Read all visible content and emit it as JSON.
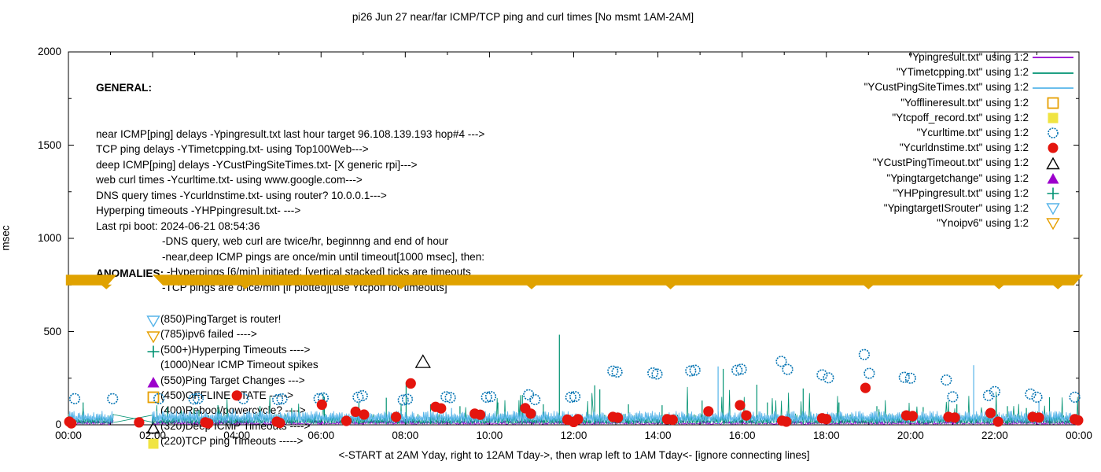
{
  "title": "pi26 Jun 27  near/far ICMP/TCP ping and curl times [No msmt 1AM-2AM]",
  "general": {
    "heading": "GENERAL:",
    "lines": [
      {
        "indent": 0,
        "text": "near ICMP[ping] delays -Ypingresult.txt last hour target 96.108.139.193 hop#4 --->"
      },
      {
        "indent": 0,
        "text": "TCP ping delays -YTimetcpping.txt- using Top100Web--->"
      },
      {
        "indent": 0,
        "text": "deep ICMP[ping] delays -YCustPingSiteTimes.txt- [X generic rpi]--->"
      },
      {
        "indent": 0,
        "text": "web curl times -Ycurltime.txt- using www.google.com--->"
      },
      {
        "indent": 0,
        "text": "DNS query times -Ycurldnstime.txt- using router? 10.0.0.1--->"
      },
      {
        "indent": 0,
        "text": "Hyperping timeouts -YHPpingresult.txt- --->"
      },
      {
        "indent": 0,
        "text": "Last rpi boot: 2024-06-21 08:54:36"
      },
      {
        "indent": 1,
        "text": "-DNS query, web curl are twice/hr, beginnng and end of hour"
      },
      {
        "indent": 1,
        "text": "-near,deep ICMP pings are once/min until timeout[1000 msec], then:"
      },
      {
        "indent": 2,
        "text": "-Hyperpings [6/min] initiated; [vertical stacked] ticks are timeouts"
      },
      {
        "indent": 1,
        "text": "-TCP pings are once/min [if plotted][use Ytcpoff for timeouts]"
      }
    ]
  },
  "anomalies": {
    "heading": "ANOMALIES:",
    "items": [
      {
        "marker": "triangle-down-open",
        "color": "#56b4e9",
        "text": "(850)PingTarget is router!"
      },
      {
        "marker": "triangle-down-open",
        "color": "#e69f00",
        "text": "(785)ipv6 failed ---->"
      },
      {
        "marker": "plus",
        "color": "#009272",
        "text": "(500+)Hyperping Timeouts ---->"
      },
      {
        "marker": "none",
        "color": "#000000",
        "text": "(1000)Near ICMP Timeout spikes"
      },
      {
        "marker": "triangle-up-filled",
        "color": "#9c00cc",
        "text": "(550)Ping Target Changes --->"
      },
      {
        "marker": "square-open",
        "color": "#e69f00",
        "text": "(450)OFFLINE STATE ----->"
      },
      {
        "marker": "none",
        "color": "#000000",
        "text": "(400)Reboot/powercycle? ---->"
      },
      {
        "marker": "triangle-up-open",
        "color": "#000000",
        "text": "(320)Deep ICMP Timeouts ---->"
      },
      {
        "marker": "square-filled",
        "color": "#f0e442",
        "text": "(220)TCP ping Timeouts ----->"
      }
    ]
  },
  "legend": {
    "entries": [
      {
        "label": "\"Ypingresult.txt\" using 1:2",
        "marker": "line",
        "color": "#9400d3"
      },
      {
        "label": "\"YTimetcpping.txt\" using 1:2",
        "marker": "line",
        "color": "#009272"
      },
      {
        "label": "\"YCustPingSiteTimes.txt\" using 1:2",
        "marker": "line",
        "color": "#56b4e9"
      },
      {
        "label": "\"Yofflineresult.txt\" using 1:2",
        "marker": "square-open",
        "color": "#e69f00"
      },
      {
        "label": "\"Ytcpoff_record.txt\" using 1:2",
        "marker": "square-filled",
        "color": "#f0e442"
      },
      {
        "label": "\"Ycurltime.txt\" using 1:2",
        "marker": "circle-open",
        "color": "#0072b2"
      },
      {
        "label": "\"Ycurldnstime.txt\" using 1:2",
        "marker": "circle-filled",
        "color": "#e4150e"
      },
      {
        "label": "\"YCustPingTimeout.txt\" using 1:2",
        "marker": "triangle-up-open",
        "color": "#000000"
      },
      {
        "label": "\"Ypingtargetchange\" using 1:2",
        "marker": "triangle-up-filled",
        "color": "#9c00cc"
      },
      {
        "label": "\"YHPpingresult.txt\" using 1:2",
        "marker": "plus",
        "color": "#009272"
      },
      {
        "label": "\"YpingtargetISrouter\" using 1:2",
        "marker": "triangle-down-open",
        "color": "#56b4e9"
      },
      {
        "label": "\"Ynoipv6\" using 1:2",
        "marker": "triangle-down-open",
        "color": "#e69f00"
      }
    ]
  },
  "chart_data": {
    "type": "line",
    "title": "pi26 Jun 27  near/far ICMP/TCP ping and curl times [No msmt 1AM-2AM]",
    "xlabel": "<-START at 2AM Yday, right to 12AM Tday->, then wrap left to 1AM Tday<- [ignore connecting lines]",
    "ylabel": "msec",
    "ylim": [
      0,
      2000
    ],
    "yticks": [
      0,
      500,
      1000,
      1500,
      2000
    ],
    "xticks_hours": [
      0,
      2,
      4,
      6,
      8,
      10,
      12,
      14,
      16,
      18,
      20,
      22,
      24
    ],
    "xtick_labels": [
      "00:00",
      "02:00",
      "04:00",
      "06:00",
      "08:00",
      "10:00",
      "12:00",
      "14:00",
      "16:00",
      "18:00",
      "20:00",
      "22:00",
      "00:00"
    ],
    "grid": false,
    "legend_position": "top-right-outside-look",
    "measurement_gap_hours": [
      1.08,
      1.97
    ],
    "noise_series": [
      {
        "name": "Ypingresult.txt",
        "color": "#9400d3",
        "min": 2,
        "max": 26,
        "spikes": []
      },
      {
        "name": "YTimetcpping.txt",
        "color": "#009272",
        "min": 4,
        "max": 60,
        "spikes": [
          [
            0.35,
            120
          ],
          [
            2.35,
            95
          ],
          [
            3.1,
            80
          ],
          [
            3.55,
            105
          ],
          [
            4.55,
            100
          ],
          [
            5.3,
            90
          ],
          [
            6.08,
            150
          ],
          [
            6.9,
            120
          ],
          [
            7.55,
            145
          ],
          [
            8.02,
            228
          ],
          [
            8.6,
            110
          ],
          [
            9.3,
            100
          ],
          [
            10.2,
            120
          ],
          [
            10.78,
            160
          ],
          [
            11.28,
            110
          ],
          [
            11.66,
            483
          ],
          [
            12.5,
            212
          ],
          [
            12.62,
            190
          ],
          [
            13.3,
            110
          ],
          [
            14.1,
            105
          ],
          [
            15.05,
            130
          ],
          [
            15.55,
            300
          ],
          [
            16.35,
            215
          ],
          [
            16.6,
            120
          ],
          [
            17.45,
            195
          ],
          [
            18.3,
            120
          ],
          [
            19.2,
            100
          ],
          [
            20.3,
            95
          ],
          [
            21.1,
            110
          ],
          [
            22.3,
            100
          ],
          [
            22.75,
            90
          ],
          [
            23.3,
            148
          ]
        ]
      },
      {
        "name": "YCustPingSiteTimes.txt",
        "color": "#56b4e9",
        "min": 10,
        "max": 75,
        "spikes": [
          [
            3.9,
            85
          ],
          [
            9.1,
            90
          ],
          [
            15.43,
            313
          ],
          [
            21.5,
            320
          ],
          [
            23.05,
            120
          ]
        ]
      }
    ],
    "band": {
      "name": "Ynoipv6",
      "color": "#e0a200",
      "value_msec": 775,
      "segments_hours": [
        [
          -0.06,
          1.15
        ],
        [
          2.0,
          24.1
        ]
      ],
      "teeth_hours": [
        0.9,
        4.2,
        7.9,
        11.0,
        14.3,
        19.0,
        22.1,
        23.5
      ]
    },
    "scatter": [
      {
        "name": "Ycurltime.txt",
        "marker": "circle-open",
        "color": "#0072b2",
        "points": [
          [
            0.15,
            140
          ],
          [
            1.05,
            140
          ],
          [
            2.15,
            140
          ],
          [
            2.98,
            138
          ],
          [
            3.08,
            141
          ],
          [
            4.15,
            140
          ],
          [
            4.97,
            135
          ],
          [
            5.07,
            139
          ],
          [
            5.95,
            140
          ],
          [
            6.05,
            144
          ],
          [
            6.88,
            148
          ],
          [
            6.98,
            156
          ],
          [
            7.95,
            133
          ],
          [
            8.05,
            137
          ],
          [
            8.97,
            150
          ],
          [
            9.07,
            146
          ],
          [
            9.93,
            148
          ],
          [
            10.03,
            151
          ],
          [
            10.93,
            161
          ],
          [
            11.08,
            135
          ],
          [
            11.93,
            148
          ],
          [
            12.03,
            151
          ],
          [
            12.93,
            288
          ],
          [
            13.03,
            283
          ],
          [
            13.88,
            278
          ],
          [
            13.98,
            272
          ],
          [
            14.78,
            289
          ],
          [
            14.88,
            293
          ],
          [
            15.88,
            293
          ],
          [
            15.98,
            298
          ],
          [
            16.93,
            340
          ],
          [
            17.08,
            297
          ],
          [
            17.9,
            268
          ],
          [
            18.05,
            252
          ],
          [
            18.9,
            377
          ],
          [
            19.02,
            276
          ],
          [
            19.85,
            255
          ],
          [
            20.0,
            250
          ],
          [
            20.85,
            240
          ],
          [
            21.0,
            150
          ],
          [
            21.85,
            157
          ],
          [
            22.0,
            178
          ],
          [
            22.85,
            165
          ],
          [
            23.0,
            148
          ],
          [
            23.9,
            148
          ]
        ]
      },
      {
        "name": "Ycurldnstime.txt",
        "marker": "circle-filled",
        "color": "#e4150e",
        "points": [
          [
            0.02,
            17
          ],
          [
            0.07,
            8
          ],
          [
            1.68,
            13
          ],
          [
            3.25,
            13
          ],
          [
            3.32,
            8
          ],
          [
            4.0,
            157
          ],
          [
            4.95,
            17
          ],
          [
            5.02,
            10
          ],
          [
            6.02,
            108
          ],
          [
            6.6,
            21
          ],
          [
            6.82,
            70
          ],
          [
            7.02,
            55
          ],
          [
            7.78,
            42
          ],
          [
            8.13,
            222
          ],
          [
            8.72,
            96
          ],
          [
            8.85,
            88
          ],
          [
            9.65,
            60
          ],
          [
            9.78,
            54
          ],
          [
            10.85,
            89
          ],
          [
            10.98,
            60
          ],
          [
            11.85,
            28
          ],
          [
            12.0,
            15
          ],
          [
            12.1,
            30
          ],
          [
            12.93,
            42
          ],
          [
            13.05,
            38
          ],
          [
            14.22,
            30
          ],
          [
            14.35,
            27
          ],
          [
            15.2,
            72
          ],
          [
            15.95,
            105
          ],
          [
            16.1,
            50
          ],
          [
            16.95,
            22
          ],
          [
            17.05,
            17
          ],
          [
            17.9,
            35
          ],
          [
            18.0,
            31
          ],
          [
            18.93,
            198
          ],
          [
            19.9,
            50
          ],
          [
            20.05,
            47
          ],
          [
            20.9,
            42
          ],
          [
            21.05,
            39
          ],
          [
            21.9,
            63
          ],
          [
            22.08,
            17
          ],
          [
            22.9,
            42
          ],
          [
            23.05,
            39
          ],
          [
            23.9,
            30
          ],
          [
            23.98,
            24
          ]
        ]
      },
      {
        "name": "YCustPingTimeout.txt",
        "marker": "triangle-up-open",
        "color": "#000000",
        "points": [
          [
            8.42,
            335
          ]
        ]
      }
    ],
    "connecting_lines": [
      [
        1.07,
        12,
        2.0,
        52
      ],
      [
        1.07,
        55,
        2.0,
        14
      ]
    ]
  }
}
